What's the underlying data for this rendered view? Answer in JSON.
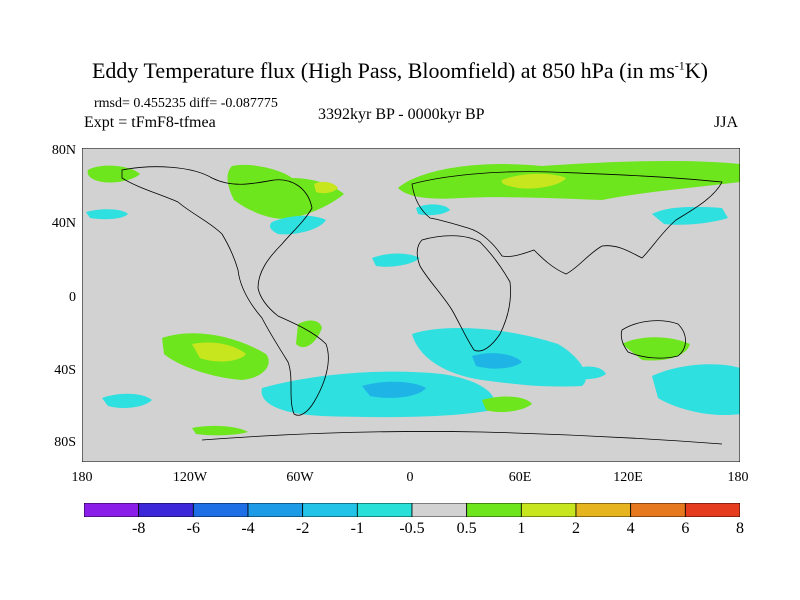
{
  "title": {
    "main": "Eddy Temperature flux (High Pass, Bloomfield) at 850 hPa (in ms",
    "sup": "-1",
    "tail": "K)"
  },
  "stats": {
    "rmsd_line": "rmsd= 0.455235 diff= -0.087775",
    "expt": "Expt = tFmF8-tfmea"
  },
  "period": "3392kyr BP - 0000kyr BP",
  "season": "JJA",
  "axes": {
    "y_ticks": [
      "80N",
      "40N",
      "0",
      "40S",
      "80S"
    ],
    "x_ticks": [
      "180",
      "120W",
      "60W",
      "0",
      "60E",
      "120E",
      "180"
    ]
  },
  "colorbar": {
    "labels": [
      "-8",
      "-6",
      "-4",
      "-2",
      "-1",
      "-0.5",
      "0.5",
      "1",
      "2",
      "4",
      "6",
      "8"
    ],
    "colors": [
      "#8a1ee8",
      "#3c28d8",
      "#1e6ee6",
      "#1e9be6",
      "#22c3e6",
      "#28e0d8",
      "#d2d2d2",
      "#6ee61e",
      "#c8e61e",
      "#e6b41e",
      "#e6781e",
      "#e63c1e"
    ]
  },
  "field_colors": {
    "background": "#d2d2d2",
    "neg_weak": "#2ee0e0",
    "neg_mod": "#1eb4e6",
    "pos_weak": "#6ee61e",
    "pos_mod": "#c8e61e"
  }
}
